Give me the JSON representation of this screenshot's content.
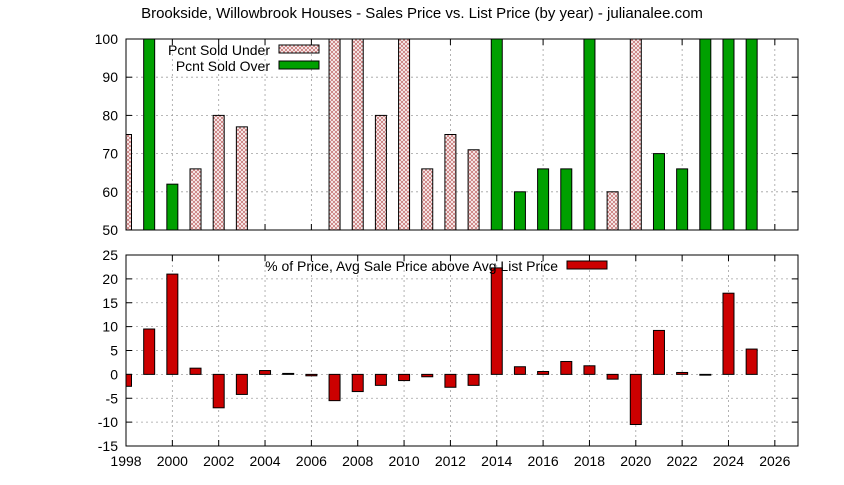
{
  "chart_data": [
    {
      "type": "bar",
      "title": "Brookside, Willowbrook Houses - Sales Price vs. List Price (by year) - julianalee.com",
      "xlabel": "",
      "ylabel": "",
      "xlim": [
        1998,
        2027
      ],
      "ylim": [
        50,
        100
      ],
      "yticks": [
        50,
        60,
        70,
        80,
        90,
        100
      ],
      "grid": true,
      "legend_position": "top-left",
      "series": [
        {
          "name": "Pcnt Sold Under",
          "color": "#c87878",
          "pattern": "crosshatch",
          "points": [
            {
              "x": 1998,
              "y": 75
            },
            {
              "x": 2001,
              "y": 66
            },
            {
              "x": 2002,
              "y": 80
            },
            {
              "x": 2003,
              "y": 77
            },
            {
              "x": 2007,
              "y": 100
            },
            {
              "x": 2008,
              "y": 100
            },
            {
              "x": 2009,
              "y": 80
            },
            {
              "x": 2010,
              "y": 100
            },
            {
              "x": 2011,
              "y": 66
            },
            {
              "x": 2012,
              "y": 75
            },
            {
              "x": 2013,
              "y": 71
            },
            {
              "x": 2019,
              "y": 60
            },
            {
              "x": 2020,
              "y": 100
            }
          ]
        },
        {
          "name": "Pcnt Sold Over",
          "color": "#00a000",
          "pattern": "solid",
          "points": [
            {
              "x": 1999,
              "y": 100
            },
            {
              "x": 2000,
              "y": 62
            },
            {
              "x": 2014,
              "y": 100
            },
            {
              "x": 2015,
              "y": 60
            },
            {
              "x": 2016,
              "y": 66
            },
            {
              "x": 2017,
              "y": 66
            },
            {
              "x": 2018,
              "y": 100
            },
            {
              "x": 2021,
              "y": 70
            },
            {
              "x": 2022,
              "y": 66
            },
            {
              "x": 2023,
              "y": 100
            },
            {
              "x": 2024,
              "y": 100
            },
            {
              "x": 2025,
              "y": 100
            }
          ]
        }
      ]
    },
    {
      "type": "bar",
      "title": "",
      "xlabel": "",
      "ylabel": "",
      "xlim": [
        1998,
        2027
      ],
      "ylim": [
        -15,
        25
      ],
      "yticks": [
        -15,
        -10,
        -5,
        0,
        5,
        10,
        15,
        20,
        25
      ],
      "xticks": [
        1998,
        2000,
        2002,
        2004,
        2006,
        2008,
        2010,
        2012,
        2014,
        2016,
        2018,
        2020,
        2022,
        2024,
        2026
      ],
      "grid": true,
      "legend_position": "top-center",
      "series": [
        {
          "name": "% of Price, Avg Sale Price above Avg List Price",
          "color": "#cc0000",
          "points": [
            {
              "x": 1998,
              "y": -2.5
            },
            {
              "x": 1999,
              "y": 9.5
            },
            {
              "x": 2000,
              "y": 21
            },
            {
              "x": 2001,
              "y": 1.3
            },
            {
              "x": 2002,
              "y": -7
            },
            {
              "x": 2003,
              "y": -4.2
            },
            {
              "x": 2004,
              "y": 0.8
            },
            {
              "x": 2005,
              "y": 0.2
            },
            {
              "x": 2006,
              "y": -0.3
            },
            {
              "x": 2007,
              "y": -5.5
            },
            {
              "x": 2008,
              "y": -3.6
            },
            {
              "x": 2009,
              "y": -2.3
            },
            {
              "x": 2010,
              "y": -1.3
            },
            {
              "x": 2011,
              "y": -0.5
            },
            {
              "x": 2012,
              "y": -2.7
            },
            {
              "x": 2013,
              "y": -2.3
            },
            {
              "x": 2014,
              "y": 22.3
            },
            {
              "x": 2015,
              "y": 1.6
            },
            {
              "x": 2016,
              "y": 0.6
            },
            {
              "x": 2017,
              "y": 2.7
            },
            {
              "x": 2018,
              "y": 1.8
            },
            {
              "x": 2019,
              "y": -1
            },
            {
              "x": 2020,
              "y": -10.5
            },
            {
              "x": 2021,
              "y": 9.2
            },
            {
              "x": 2022,
              "y": 0.4
            },
            {
              "x": 2023,
              "y": -0.1
            },
            {
              "x": 2024,
              "y": 17
            },
            {
              "x": 2025,
              "y": 5.3
            }
          ]
        }
      ]
    }
  ]
}
